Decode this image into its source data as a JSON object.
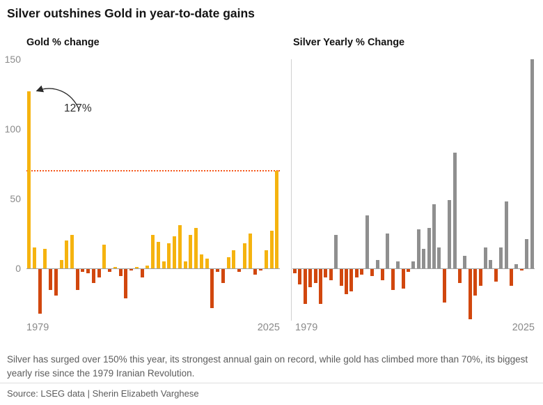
{
  "title": "Silver outshines Gold in year-to-date gains",
  "chart_data": [
    {
      "type": "bar",
      "title": "Gold % change",
      "x_start": 1979,
      "x_end": 2025,
      "xtick_labels": [
        "1979",
        "2025"
      ],
      "yticks": [
        0,
        50,
        100,
        150
      ],
      "ylim": [
        -40,
        150
      ],
      "grid": false,
      "legend": "none",
      "colors": {
        "positive": "#f5b30f",
        "negative": "#d1470e"
      },
      "values": [
        127,
        15,
        -32,
        14,
        -15,
        -19,
        6,
        20,
        24,
        -15,
        -2,
        -3,
        -10,
        -6,
        17,
        -2,
        1,
        -5,
        -21,
        -1,
        1,
        -6,
        2,
        24,
        19,
        5,
        18,
        23,
        31,
        5,
        24,
        29,
        10,
        7,
        -28,
        -2,
        -10,
        8,
        13,
        -2,
        18,
        25,
        -4,
        -1,
        13,
        27,
        70
      ],
      "annotation": {
        "text": "127%",
        "year": 1979,
        "value": 127
      },
      "reference_line": {
        "value": 70,
        "style": "dotted",
        "color": "#f4581c"
      }
    },
    {
      "type": "bar",
      "title": "Silver Yearly % Change",
      "x_start": 1979,
      "x_end": 2025,
      "xtick_labels": [
        "1979",
        "2025"
      ],
      "yticks": [
        0,
        50,
        100,
        150
      ],
      "ylim": [
        -40,
        150
      ],
      "grid": false,
      "legend": "none",
      "colors": {
        "positive": "#8f8f8f",
        "negative": "#d1470e"
      },
      "values": [
        -3,
        -11,
        -25,
        -13,
        -10,
        -25,
        -6,
        -8,
        24,
        -12,
        -18,
        -16,
        -6,
        -4,
        38,
        -5,
        6,
        -8,
        25,
        -15,
        5,
        -14,
        -2,
        5,
        28,
        14,
        29,
        46,
        15,
        -24,
        49,
        83,
        -10,
        9,
        -36,
        -19,
        -12,
        15,
        6,
        -9,
        15,
        48,
        -12,
        3,
        -1,
        21,
        152
      ]
    }
  ],
  "footer": {
    "note": "Silver has surged over 150% this year, its strongest annual gain on record, while gold has climbed more than 70%, its biggest yearly rise since the 1979 Iranian Revolution.",
    "source": "Source: LSEG data | Sherin Elizabeth Varghese"
  }
}
